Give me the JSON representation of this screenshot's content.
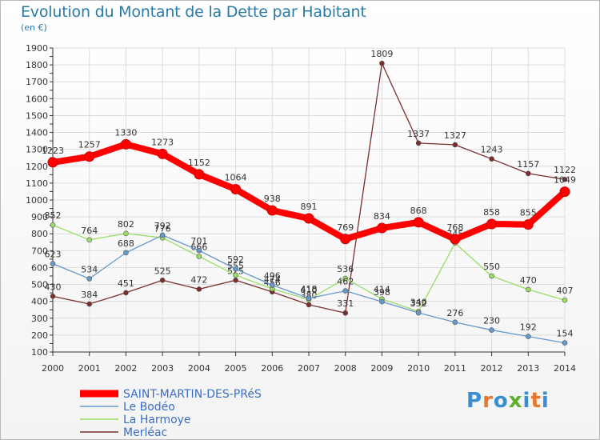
{
  "chart_data": {
    "type": "line",
    "title": "Evolution du Montant de la Dette par Habitant",
    "subtitle": "(en €)",
    "x": [
      "2000",
      "2001",
      "2002",
      "2003",
      "2004",
      "2005",
      "2006",
      "2007",
      "2008",
      "2009",
      "2010",
      "2011",
      "2012",
      "2013",
      "2014"
    ],
    "ylim": [
      100,
      1900
    ],
    "yticks": [
      100,
      200,
      300,
      400,
      500,
      600,
      700,
      800,
      900,
      1000,
      1100,
      1200,
      1300,
      1400,
      1500,
      1600,
      1700,
      1800,
      1900
    ],
    "grid": true,
    "legend_position": "bottom-left",
    "series": [
      {
        "name": "SAINT-MARTIN-DES-PRéS",
        "color": "#ff0000",
        "values": [
          1223,
          1257,
          1330,
          1273,
          1152,
          1064,
          938,
          891,
          769,
          834,
          868,
          768,
          858,
          855,
          1049
        ]
      },
      {
        "name": "Le Bodéo",
        "color": "#6699cc",
        "values": [
          623,
          534,
          688,
          792,
          701,
          592,
          496,
          418,
          462,
          398,
          332,
          276,
          230,
          192,
          154
        ]
      },
      {
        "name": "La Harmoye",
        "color": "#99dd66",
        "values": [
          852,
          764,
          802,
          776,
          666,
          555,
          474,
          410,
          536,
          414,
          340,
          745,
          550,
          470,
          407
        ]
      },
      {
        "name": "Merléac",
        "color": "#7a2e2e",
        "values": [
          430,
          384,
          451,
          525,
          472,
          525,
          456,
          380,
          331,
          1809,
          1337,
          1327,
          1243,
          1157,
          1122
        ]
      }
    ]
  },
  "logo": {
    "text": "Proxiti",
    "letters": [
      "P",
      "r",
      "o",
      "x",
      "i",
      "t",
      "i"
    ],
    "colors": [
      "#3a8dd0",
      "#e8762a",
      "#3a8dd0",
      "#5bb030",
      "#3a8dd0",
      "#e8762a",
      "#3a8dd0"
    ]
  }
}
